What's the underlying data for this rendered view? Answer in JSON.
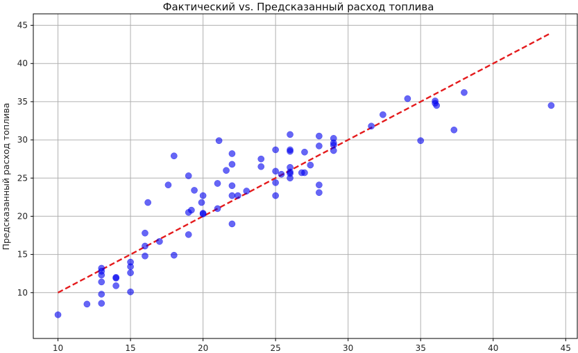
{
  "chart_data": {
    "type": "scatter",
    "title": "Фактический vs. Предсказанный расход топлива",
    "xlabel": "",
    "ylabel": "Предсказанный расход топлива",
    "xlim": [
      8.3,
      45.8
    ],
    "ylim": [
      4.0,
      46.5
    ],
    "xticks": [
      10,
      15,
      20,
      25,
      30,
      35,
      40,
      45
    ],
    "yticks": [
      10,
      15,
      20,
      25,
      30,
      35,
      40,
      45
    ],
    "grid": true,
    "point_color": "#0000ee",
    "line_color": "#e41a1c",
    "reference_line": {
      "x": [
        10,
        44
      ],
      "y": [
        10,
        44
      ],
      "style": "dashed"
    },
    "points": [
      [
        10,
        7.1
      ],
      [
        12,
        8.5
      ],
      [
        13,
        8.6
      ],
      [
        13,
        9.8
      ],
      [
        13,
        11.4
      ],
      [
        13,
        12.3
      ],
      [
        13,
        12.8
      ],
      [
        13,
        13.2
      ],
      [
        14,
        10.9
      ],
      [
        14,
        11.9
      ],
      [
        14,
        12.0
      ],
      [
        15,
        10.1
      ],
      [
        15,
        12.6
      ],
      [
        15,
        13.4
      ],
      [
        15,
        14.0
      ],
      [
        16,
        14.8
      ],
      [
        16,
        16.1
      ],
      [
        16,
        17.8
      ],
      [
        16.2,
        21.8
      ],
      [
        17,
        16.7
      ],
      [
        17.6,
        24.1
      ],
      [
        18,
        14.9
      ],
      [
        18,
        27.9
      ],
      [
        19,
        17.6
      ],
      [
        19,
        20.5
      ],
      [
        19,
        25.3
      ],
      [
        19.2,
        20.8
      ],
      [
        19.4,
        23.4
      ],
      [
        19.9,
        21.8
      ],
      [
        20,
        20.3
      ],
      [
        20,
        20.4
      ],
      [
        20,
        22.7
      ],
      [
        21,
        21.0
      ],
      [
        21,
        24.3
      ],
      [
        21.1,
        29.9
      ],
      [
        21.6,
        26.0
      ],
      [
        22,
        19.0
      ],
      [
        22,
        22.7
      ],
      [
        22,
        24.0
      ],
      [
        22,
        26.8
      ],
      [
        22,
        28.2
      ],
      [
        22.4,
        22.7
      ],
      [
        23,
        23.3
      ],
      [
        24,
        26.5
      ],
      [
        24,
        27.5
      ],
      [
        25,
        22.7
      ],
      [
        25,
        24.4
      ],
      [
        25,
        25.9
      ],
      [
        25,
        28.7
      ],
      [
        25.4,
        25.5
      ],
      [
        26,
        25.0
      ],
      [
        26,
        25.6
      ],
      [
        26,
        25.8
      ],
      [
        26,
        26.4
      ],
      [
        26,
        28.5
      ],
      [
        26,
        28.7
      ],
      [
        26,
        30.7
      ],
      [
        26.8,
        25.7
      ],
      [
        27,
        25.7
      ],
      [
        27,
        28.4
      ],
      [
        27.4,
        26.7
      ],
      [
        28,
        23.1
      ],
      [
        28,
        24.1
      ],
      [
        28,
        29.2
      ],
      [
        28,
        30.5
      ],
      [
        29,
        28.6
      ],
      [
        29,
        29.3
      ],
      [
        29,
        29.6
      ],
      [
        29,
        30.2
      ],
      [
        31.6,
        31.8
      ],
      [
        32.4,
        33.3
      ],
      [
        34.1,
        35.4
      ],
      [
        35,
        29.9
      ],
      [
        36,
        34.8
      ],
      [
        36,
        35.1
      ],
      [
        36.1,
        34.5
      ],
      [
        37.3,
        31.3
      ],
      [
        38,
        36.2
      ],
      [
        44,
        34.5
      ]
    ]
  }
}
